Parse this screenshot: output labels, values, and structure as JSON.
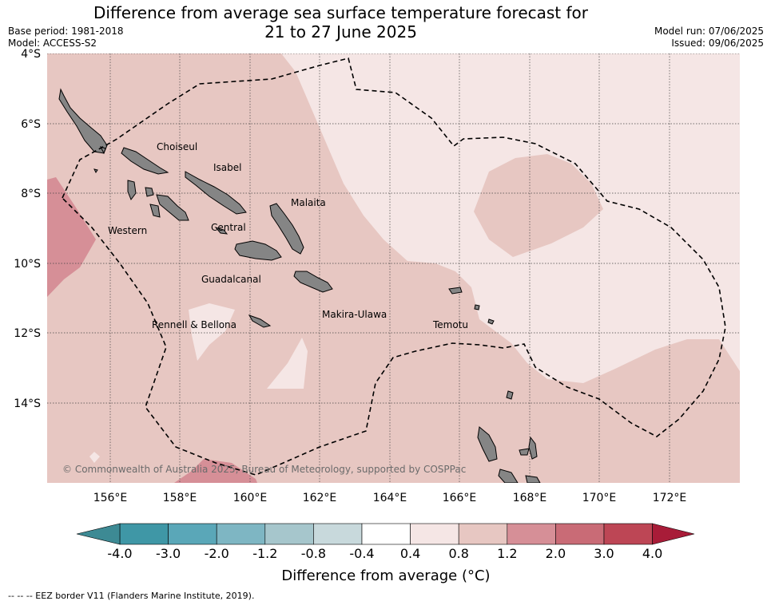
{
  "title_line1": "Difference from average sea surface temperature forecast for",
  "title_line2": "21 to 27 June 2025",
  "base_period": "Base period: 1981-2018",
  "model": "Model: ACCESS-S2",
  "model_run": "Model run: 07/06/2025",
  "issued": "Issued: 09/06/2025",
  "lat_labels": [
    "4°S",
    "6°S",
    "8°S",
    "10°S",
    "12°S",
    "14°S"
  ],
  "lon_labels": [
    "156°E",
    "158°E",
    "160°E",
    "162°E",
    "164°E",
    "166°E",
    "168°E",
    "170°E",
    "172°E"
  ],
  "regions": [
    "Choiseul",
    "Isabel",
    "Malaita",
    "Western",
    "Central",
    "Guadalcanal",
    "Rennell & Bellona",
    "Makira-Ulawa",
    "Temotu"
  ],
  "copyright": "© Commonwealth of Australia 2025, Bureau of Meteorology, supported by COSPPac",
  "colorbar": {
    "ticks": [
      "-4.0",
      "-3.0",
      "-2.0",
      "-1.2",
      "-0.8",
      "-0.4",
      "0.4",
      "0.8",
      "1.2",
      "2.0",
      "3.0",
      "4.0"
    ],
    "colors": [
      "#3f97a6",
      "#5aa7b8",
      "#7eb6c3",
      "#a6c6cc",
      "#c8d9dc",
      "#ffffff",
      "#f5e6e5",
      "#e7c7c2",
      "#d68f97",
      "#c96b76",
      "#bd4655"
    ],
    "under_color": "#3d8a94",
    "over_color": "#a81c38",
    "label": "Difference from average (°C)"
  },
  "footnote": "--  --  -- EEZ border V11 (Flanders Marine Institute, 2019)."
}
